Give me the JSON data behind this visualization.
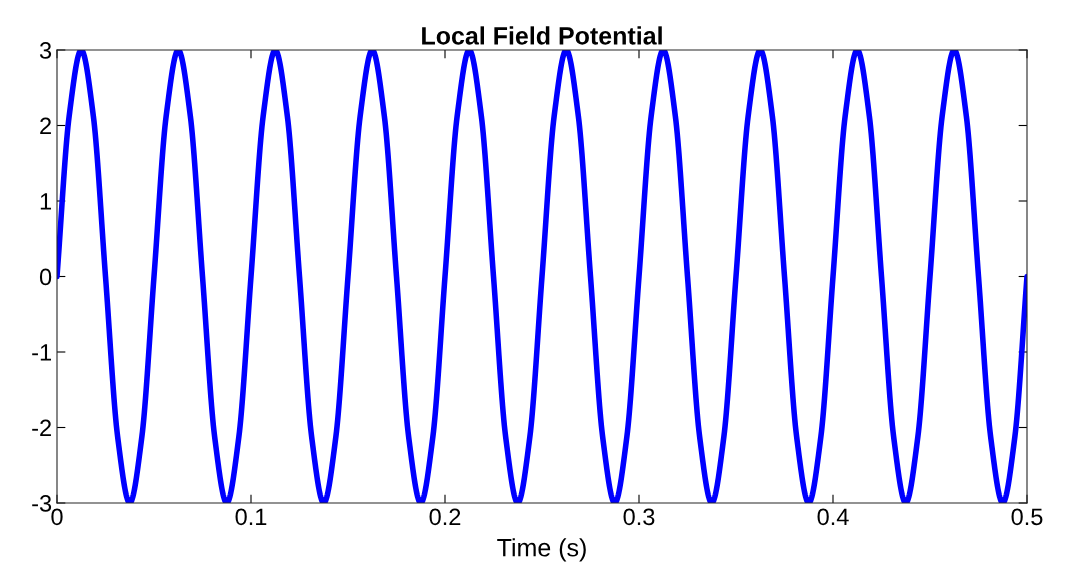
{
  "chart_data": {
    "type": "line",
    "title": "Local Field Potential",
    "xlabel": "Time (s)",
    "x": [
      0,
      0.00625,
      0.0125,
      0.01875,
      0.025,
      0.03125,
      0.0375,
      0.04375,
      0.05,
      0.05625,
      0.0625,
      0.06875,
      0.075,
      0.08125,
      0.0875,
      0.09375,
      0.1,
      0.10625,
      0.1125,
      0.11875,
      0.125,
      0.13125,
      0.1375,
      0.14375,
      0.15,
      0.15625,
      0.1625,
      0.16875,
      0.175,
      0.18125,
      0.1875,
      0.19375,
      0.2,
      0.20625,
      0.2125,
      0.21875,
      0.225,
      0.23125,
      0.2375,
      0.24375,
      0.25,
      0.25625,
      0.2625,
      0.26875,
      0.275,
      0.28125,
      0.2875,
      0.29375,
      0.3,
      0.30625,
      0.3125,
      0.31875,
      0.325,
      0.33125,
      0.3375,
      0.34375,
      0.35,
      0.35625,
      0.3625,
      0.36875,
      0.375,
      0.38125,
      0.3875,
      0.39375,
      0.4,
      0.40625,
      0.4125,
      0.41875,
      0.425,
      0.43125,
      0.4375,
      0.44375,
      0.45,
      0.45625,
      0.4625,
      0.46875,
      0.475,
      0.48125,
      0.4875,
      0.49375,
      0.5
    ],
    "series": [
      {
        "color": "#0000ff",
        "values": [
          0,
          2.12,
          3,
          2.12,
          0,
          -2.12,
          -3,
          -2.12,
          0,
          2.12,
          3,
          2.12,
          0,
          -2.12,
          -3,
          -2.12,
          0,
          2.12,
          3,
          2.12,
          0,
          -2.12,
          -3,
          -2.12,
          0,
          2.12,
          3,
          2.12,
          0,
          -2.12,
          -3,
          -2.12,
          0,
          2.12,
          3,
          2.12,
          0,
          -2.12,
          -3,
          -2.12,
          0,
          2.12,
          3,
          2.12,
          0,
          -2.12,
          -3,
          -2.12,
          0,
          2.12,
          3,
          2.12,
          0,
          -2.12,
          -3,
          -2.12,
          0,
          2.12,
          3,
          2.12,
          0,
          -2.12,
          -3,
          -2.12,
          0,
          2.12,
          3,
          2.12,
          0,
          -2.12,
          -3,
          -2.12,
          0,
          2.12,
          3,
          2.12,
          0,
          -2.12,
          -3,
          -2.12,
          0
        ]
      }
    ],
    "xlim": [
      0,
      0.5
    ],
    "xticks": [
      0,
      0.1,
      0.2,
      0.3,
      0.4,
      0.5
    ],
    "ylim": [
      -3,
      3
    ],
    "yticks": [
      -3,
      -2,
      -1,
      0,
      1,
      2,
      3
    ],
    "grid": false,
    "legend": false,
    "marker": "none",
    "line_style": "solid"
  }
}
